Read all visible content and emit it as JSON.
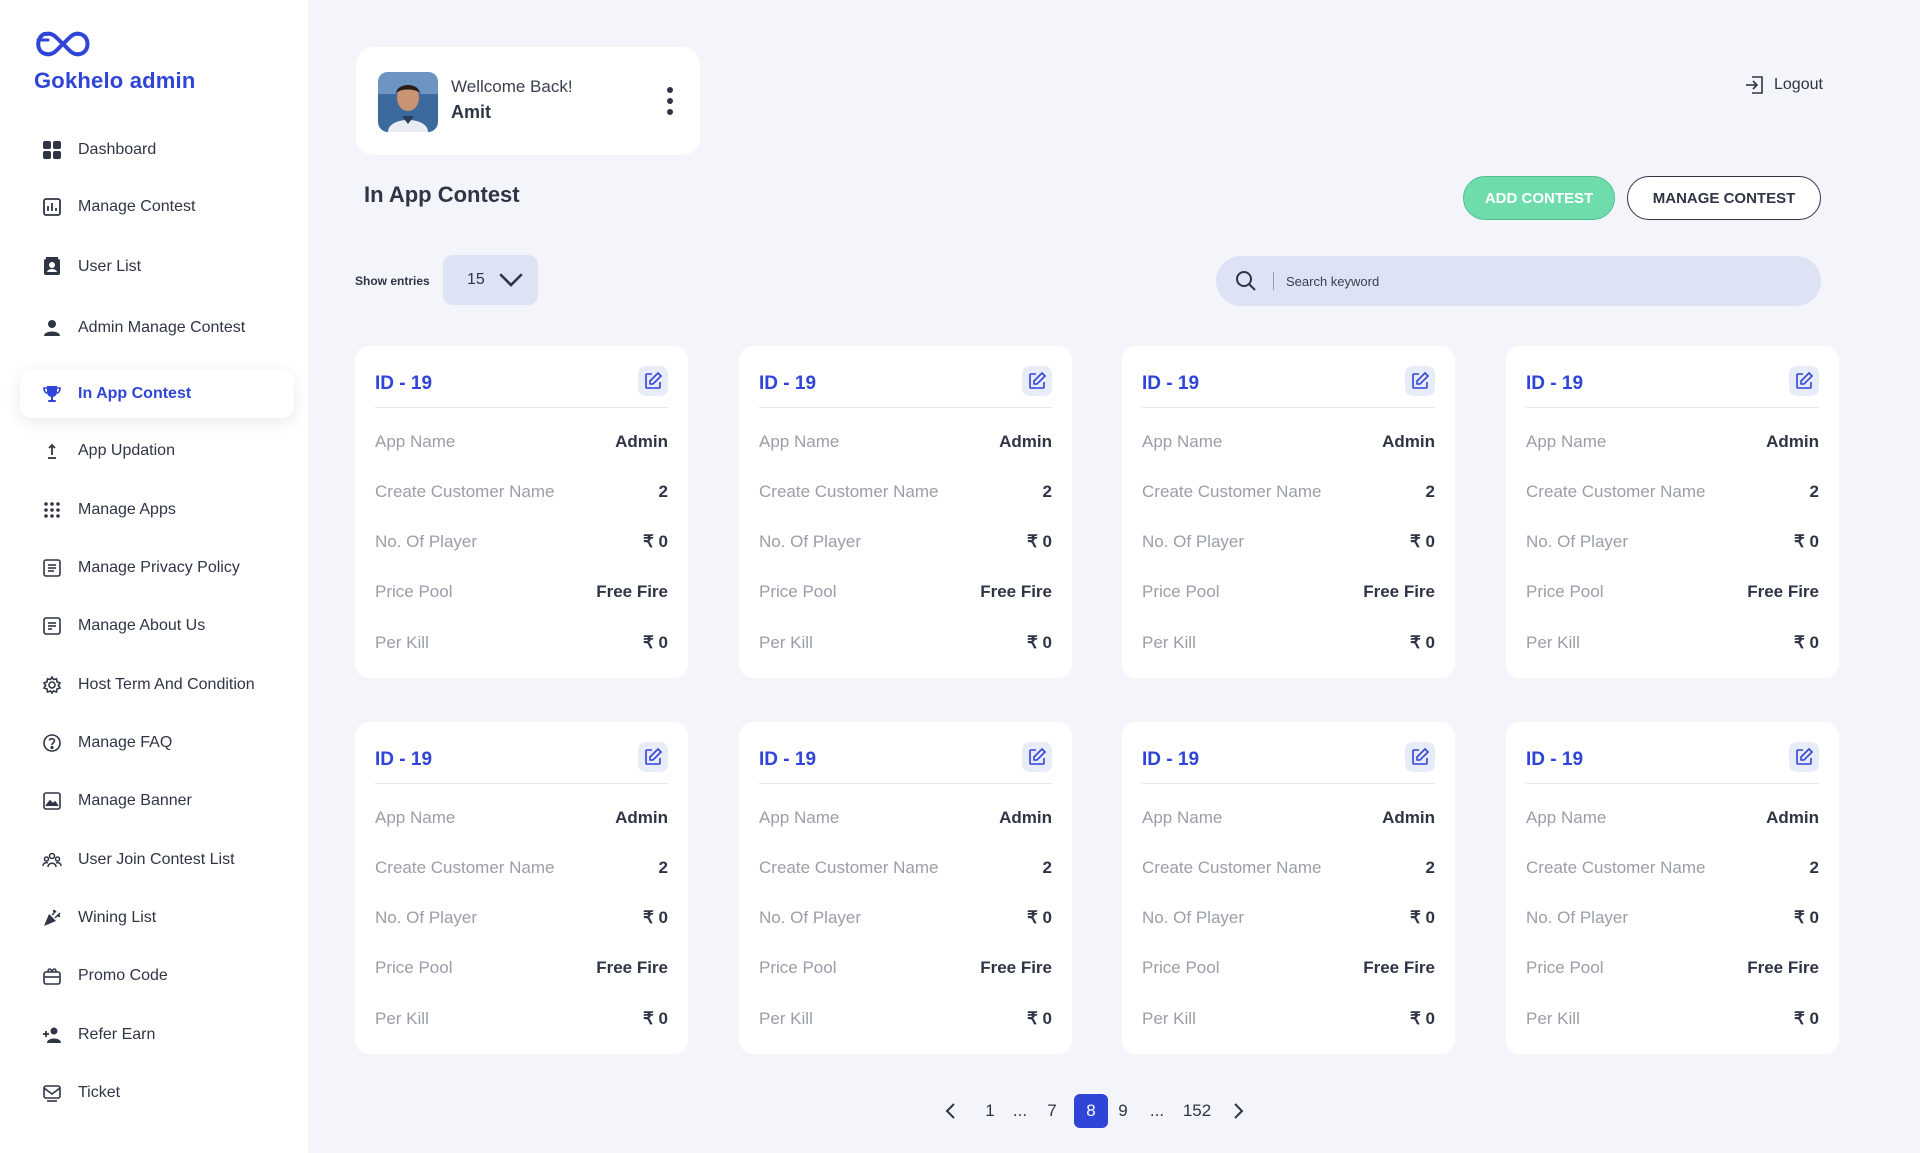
{
  "brand": {
    "name": "Gokhelo admin"
  },
  "sidebar": {
    "items": [
      {
        "label": "Dashboard",
        "icon": "dashboard-icon"
      },
      {
        "label": "Manage Contest",
        "icon": "bar-chart-icon"
      },
      {
        "label": "User List",
        "icon": "contact-card-icon"
      },
      {
        "label": "Admin Manage Contest",
        "icon": "person-icon"
      },
      {
        "label": "In App Contest",
        "icon": "trophy-icon",
        "active": true
      },
      {
        "label": "App Updation",
        "icon": "upload-arrow-icon"
      },
      {
        "label": "Manage Apps",
        "icon": "apps-grid-icon"
      },
      {
        "label": "Manage Privacy Policy",
        "icon": "policy-list-icon"
      },
      {
        "label": "Manage About Us",
        "icon": "about-list-icon"
      },
      {
        "label": "Host Term And Condition",
        "icon": "gear-icon"
      },
      {
        "label": "Manage FAQ",
        "icon": "question-icon"
      },
      {
        "label": "Manage Banner",
        "icon": "image-icon"
      },
      {
        "label": "User Join Contest List",
        "icon": "users-icon"
      },
      {
        "label": "Wining List",
        "icon": "party-popper-icon"
      },
      {
        "label": "Promo Code",
        "icon": "ticket-box-icon"
      },
      {
        "label": "Refer Earn",
        "icon": "person-add-icon"
      },
      {
        "label": "Ticket",
        "icon": "mail-ticket-icon"
      }
    ]
  },
  "header": {
    "welcome": "Wellcome Back!",
    "user_name": "Amit",
    "logout_label": "Logout"
  },
  "main": {
    "title": "In App Contest",
    "add_button": "ADD CONTEST",
    "manage_button": "MANAGE CONTEST",
    "show_entries_label": "Show entries",
    "entries_value": "15",
    "search_placeholder": "Search keyword"
  },
  "cards": [
    {
      "id": "ID - 19",
      "rows": [
        {
          "k": "App Name",
          "v": "Admin"
        },
        {
          "k": "Create Customer Name",
          "v": "2"
        },
        {
          "k": "No. Of Player",
          "v": "₹ 0"
        },
        {
          "k": "Price Pool",
          "v": "Free Fire"
        },
        {
          "k": "Per Kill",
          "v": "₹ 0"
        }
      ]
    },
    {
      "id": "ID - 19",
      "rows": [
        {
          "k": "App Name",
          "v": "Admin"
        },
        {
          "k": "Create Customer Name",
          "v": "2"
        },
        {
          "k": "No. Of Player",
          "v": "₹ 0"
        },
        {
          "k": "Price Pool",
          "v": "Free Fire"
        },
        {
          "k": "Per Kill",
          "v": "₹ 0"
        }
      ]
    },
    {
      "id": "ID - 19",
      "rows": [
        {
          "k": "App Name",
          "v": "Admin"
        },
        {
          "k": "Create Customer Name",
          "v": "2"
        },
        {
          "k": "No. Of Player",
          "v": "₹ 0"
        },
        {
          "k": "Price Pool",
          "v": "Free Fire"
        },
        {
          "k": "Per Kill",
          "v": "₹ 0"
        }
      ]
    },
    {
      "id": "ID - 19",
      "rows": [
        {
          "k": "App Name",
          "v": "Admin"
        },
        {
          "k": "Create Customer Name",
          "v": "2"
        },
        {
          "k": "No. Of Player",
          "v": "₹ 0"
        },
        {
          "k": "Price Pool",
          "v": "Free Fire"
        },
        {
          "k": "Per Kill",
          "v": "₹ 0"
        }
      ]
    },
    {
      "id": "ID - 19",
      "rows": [
        {
          "k": "App Name",
          "v": "Admin"
        },
        {
          "k": "Create Customer Name",
          "v": "2"
        },
        {
          "k": "No. Of Player",
          "v": "₹ 0"
        },
        {
          "k": "Price Pool",
          "v": "Free Fire"
        },
        {
          "k": "Per Kill",
          "v": "₹ 0"
        }
      ]
    },
    {
      "id": "ID - 19",
      "rows": [
        {
          "k": "App Name",
          "v": "Admin"
        },
        {
          "k": "Create Customer Name",
          "v": "2"
        },
        {
          "k": "No. Of Player",
          "v": "₹ 0"
        },
        {
          "k": "Price Pool",
          "v": "Free Fire"
        },
        {
          "k": "Per Kill",
          "v": "₹ 0"
        }
      ]
    },
    {
      "id": "ID - 19",
      "rows": [
        {
          "k": "App Name",
          "v": "Admin"
        },
        {
          "k": "Create Customer Name",
          "v": "2"
        },
        {
          "k": "No. Of Player",
          "v": "₹ 0"
        },
        {
          "k": "Price Pool",
          "v": "Free Fire"
        },
        {
          "k": "Per Kill",
          "v": "₹ 0"
        }
      ]
    },
    {
      "id": "ID - 19",
      "rows": [
        {
          "k": "App Name",
          "v": "Admin"
        },
        {
          "k": "Create Customer Name",
          "v": "2"
        },
        {
          "k": "No. Of Player",
          "v": "₹ 0"
        },
        {
          "k": "Price Pool",
          "v": "Free Fire"
        },
        {
          "k": "Per Kill",
          "v": "₹ 0"
        }
      ]
    }
  ],
  "pagination": {
    "pages": [
      "1",
      "...",
      "7",
      "8",
      "9",
      "...",
      "152"
    ],
    "current": "8"
  },
  "colors": {
    "accent": "#2f45d8",
    "add_button": "#6fdcac",
    "background": "#f4f5fa"
  }
}
